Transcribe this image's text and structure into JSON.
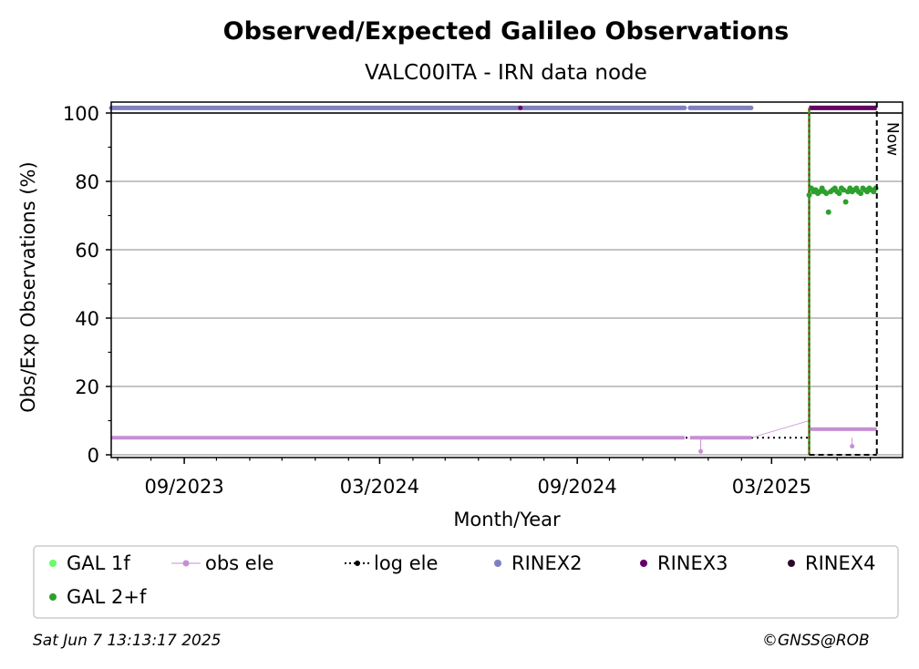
{
  "chart_data": {
    "type": "scatter",
    "title": "Observed/Expected Galileo Observations",
    "subtitle": "VALC00ITA - IRN data node",
    "xlabel": "Month/Year",
    "ylabel": "Obs/Exp Observations (%)",
    "x_ticks": [
      "09/2023",
      "03/2024",
      "09/2024",
      "03/2025"
    ],
    "y_ticks": [
      "0",
      "20",
      "40",
      "60",
      "80",
      "100"
    ],
    "ylim": [
      0,
      100
    ],
    "xlim": [
      "2023-06-25",
      "2025-07-01"
    ],
    "grid": "horizontal",
    "now_label": "Now",
    "now_date": "2025-06-07",
    "data_start_date": "2025-04-05",
    "legend_position": "bottom",
    "legend": [
      {
        "label": "GAL 1f",
        "color": "#66ff66",
        "marker": "dot"
      },
      {
        "label": "obs ele",
        "color": "#c78fd4",
        "marker": "line-dot"
      },
      {
        "label": "log ele",
        "color": "#000000",
        "marker": "dotted-line-dot"
      },
      {
        "label": "RINEX2",
        "color": "#8080c0",
        "marker": "dot"
      },
      {
        "label": "RINEX3",
        "color": "#660066",
        "marker": "dot"
      },
      {
        "label": "RINEX4",
        "color": "#2a0a2a",
        "marker": "dot"
      },
      {
        "label": "GAL 2+f",
        "color": "#2ca02c",
        "marker": "dot"
      }
    ],
    "series": [
      {
        "name": "GAL 2+f",
        "color": "#2ca02c",
        "points": [
          [
            "2025-04-05",
            76
          ],
          [
            "2025-04-07",
            78
          ],
          [
            "2025-04-09",
            77
          ],
          [
            "2025-04-11",
            77.5
          ],
          [
            "2025-04-13",
            76.5
          ],
          [
            "2025-04-15",
            77
          ],
          [
            "2025-04-17",
            78
          ],
          [
            "2025-04-19",
            77
          ],
          [
            "2025-04-21",
            76.5
          ],
          [
            "2025-04-23",
            71
          ],
          [
            "2025-04-25",
            77
          ],
          [
            "2025-04-27",
            77.5
          ],
          [
            "2025-04-29",
            78
          ],
          [
            "2025-05-01",
            77
          ],
          [
            "2025-05-03",
            76.5
          ],
          [
            "2025-05-05",
            78
          ],
          [
            "2025-05-07",
            77.5
          ],
          [
            "2025-05-09",
            74
          ],
          [
            "2025-05-11",
            77
          ],
          [
            "2025-05-13",
            78
          ],
          [
            "2025-05-15",
            77
          ],
          [
            "2025-05-17",
            77.5
          ],
          [
            "2025-05-19",
            78
          ],
          [
            "2025-05-21",
            77
          ],
          [
            "2025-05-23",
            76.5
          ],
          [
            "2025-05-25",
            78
          ],
          [
            "2025-05-27",
            77.5
          ],
          [
            "2025-05-29",
            77
          ],
          [
            "2025-05-31",
            78
          ],
          [
            "2025-06-02",
            77.5
          ],
          [
            "2025-06-04",
            77
          ],
          [
            "2025-06-06",
            78
          ]
        ]
      },
      {
        "name": "RINEX2",
        "segments": [
          [
            "2023-06-25",
            "2024-12-10",
            101.5
          ],
          [
            "2024-12-15",
            "2025-02-10",
            101.5
          ]
        ]
      },
      {
        "name": "RINEX3",
        "points": [
          [
            "2024-07-10",
            101.5
          ]
        ],
        "segments": [
          [
            "2025-04-05",
            "2025-06-07",
            101.5
          ]
        ]
      },
      {
        "name": "obs ele",
        "segments": [
          [
            "2023-06-25",
            "2024-12-10",
            5
          ],
          [
            "2024-12-15",
            "2025-02-10",
            5
          ],
          [
            "2025-04-05",
            "2025-06-07",
            7.5
          ]
        ],
        "dips": [
          [
            "2024-12-25",
            1
          ],
          [
            "2025-05-15",
            2.5
          ]
        ],
        "connector": [
          [
            "2025-02-10",
            5
          ],
          [
            "2025-04-05",
            10
          ]
        ]
      },
      {
        "name": "log ele",
        "segments": [
          [
            "2023-06-25",
            "2025-04-05",
            5
          ]
        ]
      }
    ]
  },
  "footer": {
    "timestamp": "Sat Jun  7 13:13:17 2025",
    "credit": "©GNSS@ROB"
  }
}
